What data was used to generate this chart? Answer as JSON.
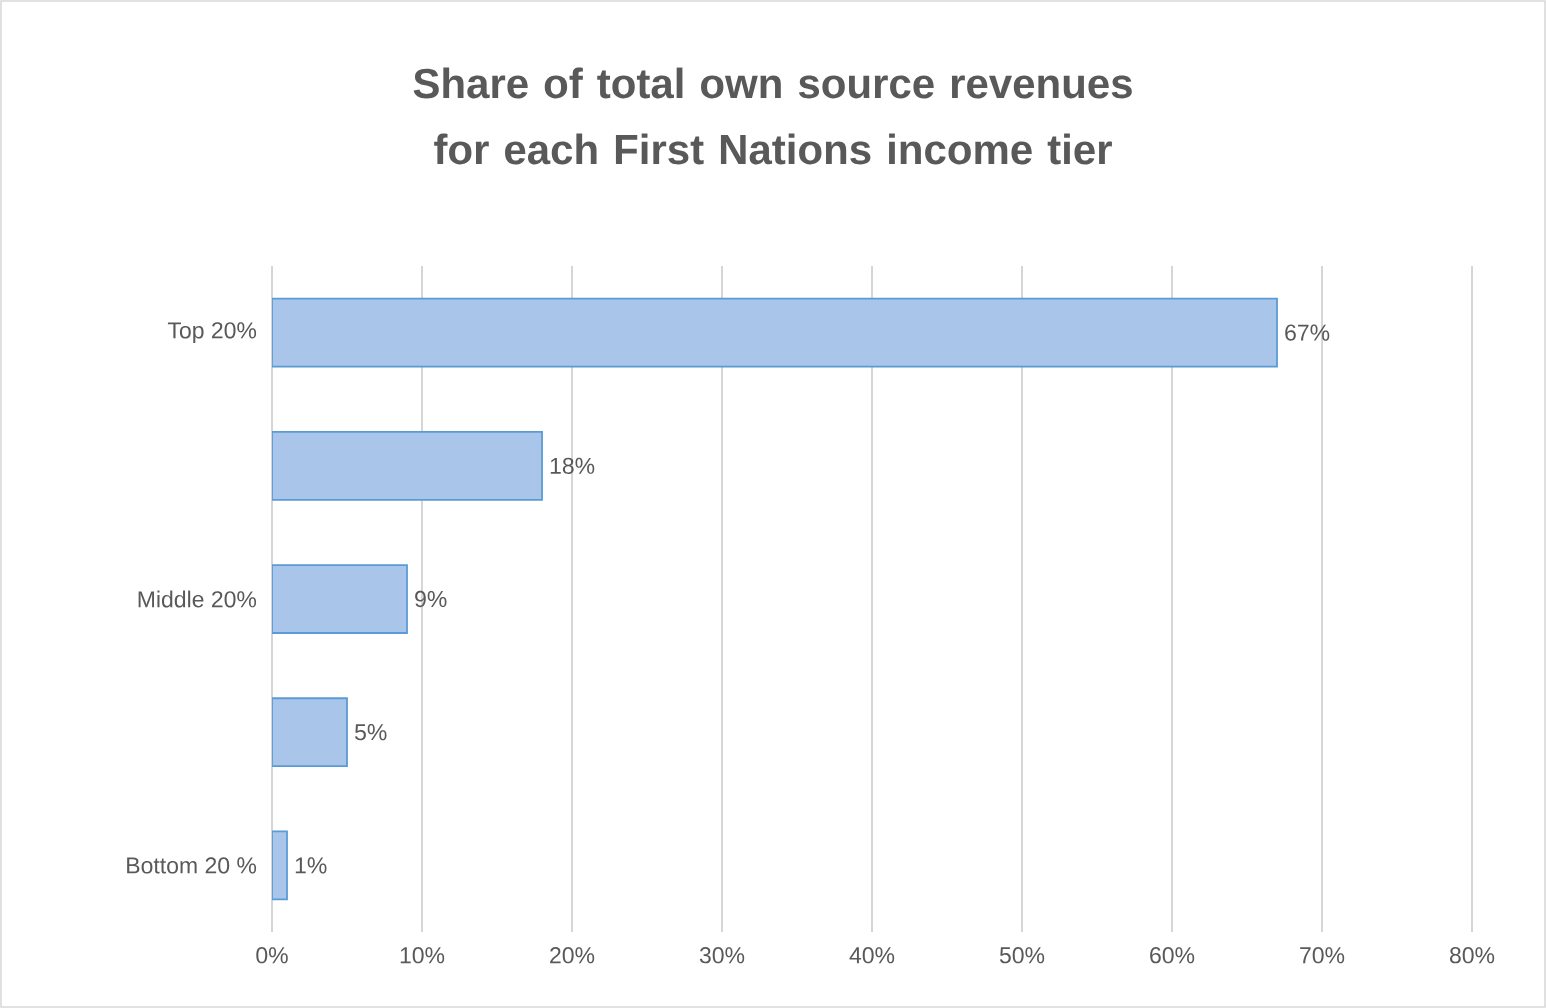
{
  "chart_data": {
    "type": "bar",
    "orientation": "horizontal",
    "title": "Share of total own source revenues for each First Nations income tier",
    "categories": [
      "Top 20%",
      null,
      "Middle 20%",
      null,
      "Bottom 20 %"
    ],
    "values": [
      67,
      18,
      9,
      5,
      1
    ],
    "value_labels": [
      "67%",
      "18%",
      "9%",
      "5%",
      "1%"
    ],
    "color": "#a9c6ea",
    "xlim": [
      0,
      80
    ],
    "xticks": [
      {
        "value": 0,
        "label": "0%"
      },
      {
        "value": 10,
        "label": "10%"
      },
      {
        "value": 20,
        "label": "20%"
      },
      {
        "value": 30,
        "label": "30%"
      },
      {
        "value": 40,
        "label": "40%"
      },
      {
        "value": 50,
        "label": "50%"
      },
      {
        "value": 60,
        "label": "60%"
      },
      {
        "value": 70,
        "label": "70%"
      },
      {
        "value": 80,
        "label": "80%"
      }
    ],
    "grid": "x"
  }
}
